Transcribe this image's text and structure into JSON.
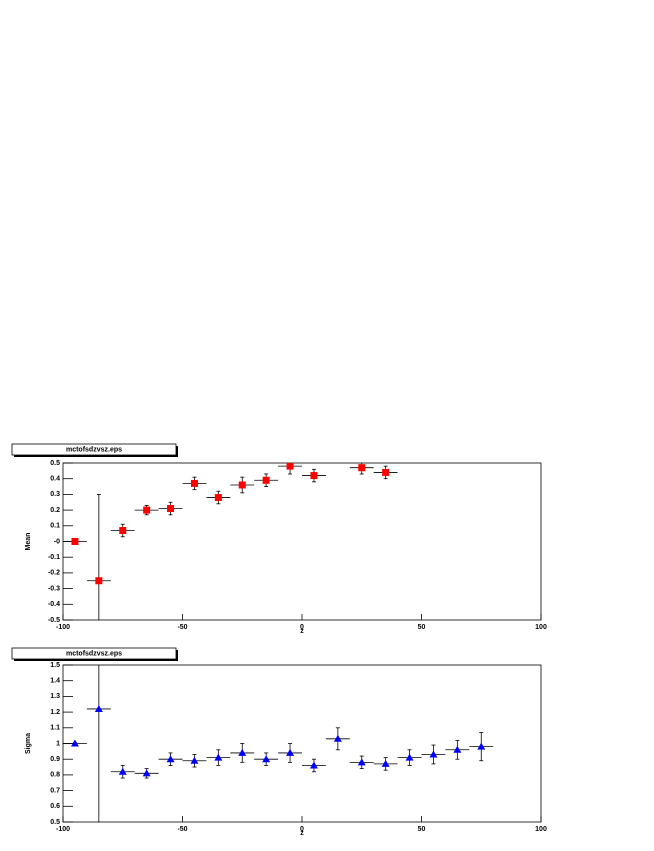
{
  "chart_data": [
    {
      "type": "scatter",
      "title": "mctofsdzvsz.eps",
      "xlabel": "z",
      "ylabel": "Mean",
      "marker": "square",
      "xlim": [
        -100,
        100
      ],
      "xticks": [
        -100,
        -50,
        0,
        50,
        100
      ],
      "ylim": [
        -0.5,
        0.5
      ],
      "yticks": [
        0.5,
        0.4,
        0.3,
        0.2,
        0.1,
        {
          "value": 0,
          "label": "-0"
        },
        -0.1,
        -0.2,
        -0.3,
        -0.4,
        -0.5
      ],
      "series": [
        {
          "color": "#ff0000",
          "x": [
            -95,
            -85,
            -75,
            -65,
            -55,
            -45,
            -35,
            -25,
            -15,
            -5,
            5,
            25,
            35
          ],
          "x_errors": [
            5,
            5,
            5,
            5,
            5,
            5,
            5,
            5,
            5,
            5,
            5,
            5,
            5
          ],
          "values": [
            0.0,
            -0.25,
            0.07,
            0.2,
            0.21,
            0.37,
            0.28,
            0.36,
            0.39,
            0.48,
            0.42,
            0.47,
            0.44
          ],
          "errors": [
            0.005,
            0.55,
            0.04,
            0.03,
            0.04,
            0.04,
            0.04,
            0.05,
            0.04,
            0.05,
            0.04,
            0.04,
            0.04
          ]
        }
      ]
    },
    {
      "type": "scatter",
      "title": "mctofsdzvsz.eps",
      "xlabel": "z",
      "ylabel": "Sigma",
      "marker": "triangle",
      "xlim": [
        -100,
        100
      ],
      "xticks": [
        -100,
        -50,
        0,
        50,
        100
      ],
      "ylim": [
        0.5,
        1.5
      ],
      "yticks": [
        1.5,
        1.4,
        1.3,
        1.2,
        1.1,
        1,
        0.9,
        0.8,
        0.7,
        0.6,
        0.5
      ],
      "series": [
        {
          "color": "#0000ff",
          "x": [
            -95,
            -85,
            -75,
            -65,
            -55,
            -45,
            -35,
            -25,
            -15,
            -5,
            5,
            15,
            25,
            35,
            45,
            55,
            65,
            75
          ],
          "x_errors": [
            5,
            5,
            5,
            5,
            5,
            5,
            5,
            5,
            5,
            5,
            5,
            5,
            5,
            5,
            5,
            5,
            5,
            5
          ],
          "values": [
            1.0,
            1.22,
            0.82,
            0.81,
            0.9,
            0.89,
            0.91,
            0.94,
            0.9,
            0.94,
            0.86,
            1.03,
            0.88,
            0.87,
            0.91,
            0.93,
            0.96,
            0.98
          ],
          "errors": [
            0.005,
            0.8,
            0.04,
            0.03,
            0.04,
            0.04,
            0.05,
            0.06,
            0.04,
            0.06,
            0.04,
            0.07,
            0.04,
            0.04,
            0.05,
            0.06,
            0.06,
            0.09
          ]
        }
      ]
    }
  ]
}
